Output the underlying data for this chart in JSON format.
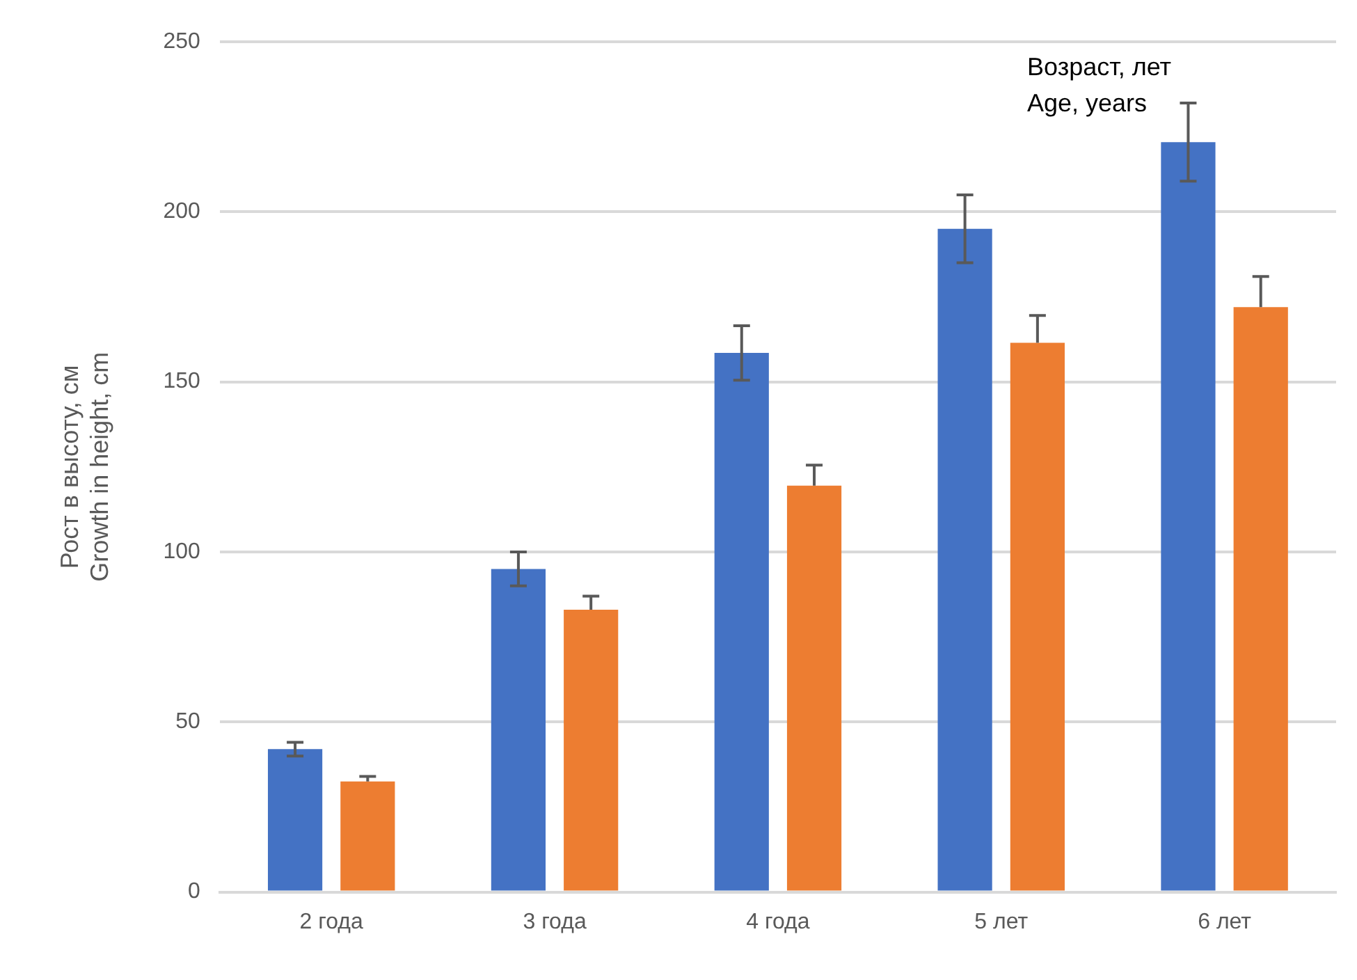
{
  "chart_data": {
    "type": "bar",
    "ylabel": "Рост в высоту, см\nGrowth in height, cm",
    "annotations": [
      "Возраст, лет\nAge, years"
    ],
    "categories": [
      "2 года",
      "3 года",
      "4 года",
      "5 лет",
      "6 лет"
    ],
    "series": [
      {
        "color": "#4472c4",
        "values": [
          42,
          95,
          158.5,
          195,
          220.5
        ],
        "errors": [
          2,
          5,
          8,
          10,
          11.5
        ]
      },
      {
        "color": "#ed7d31",
        "values": [
          32.5,
          83,
          119.5,
          161.5,
          172
        ],
        "errors": [
          [
            32.5,
            34
          ],
          [
            83,
            87
          ],
          [
            119.5,
            125.5
          ],
          [
            161.5,
            169.5
          ],
          [
            172,
            181
          ]
        ]
      }
    ],
    "ylim": [
      0,
      250
    ],
    "yticks": [
      0,
      50,
      100,
      150,
      200,
      250
    ],
    "grid": "y",
    "legend": false
  }
}
